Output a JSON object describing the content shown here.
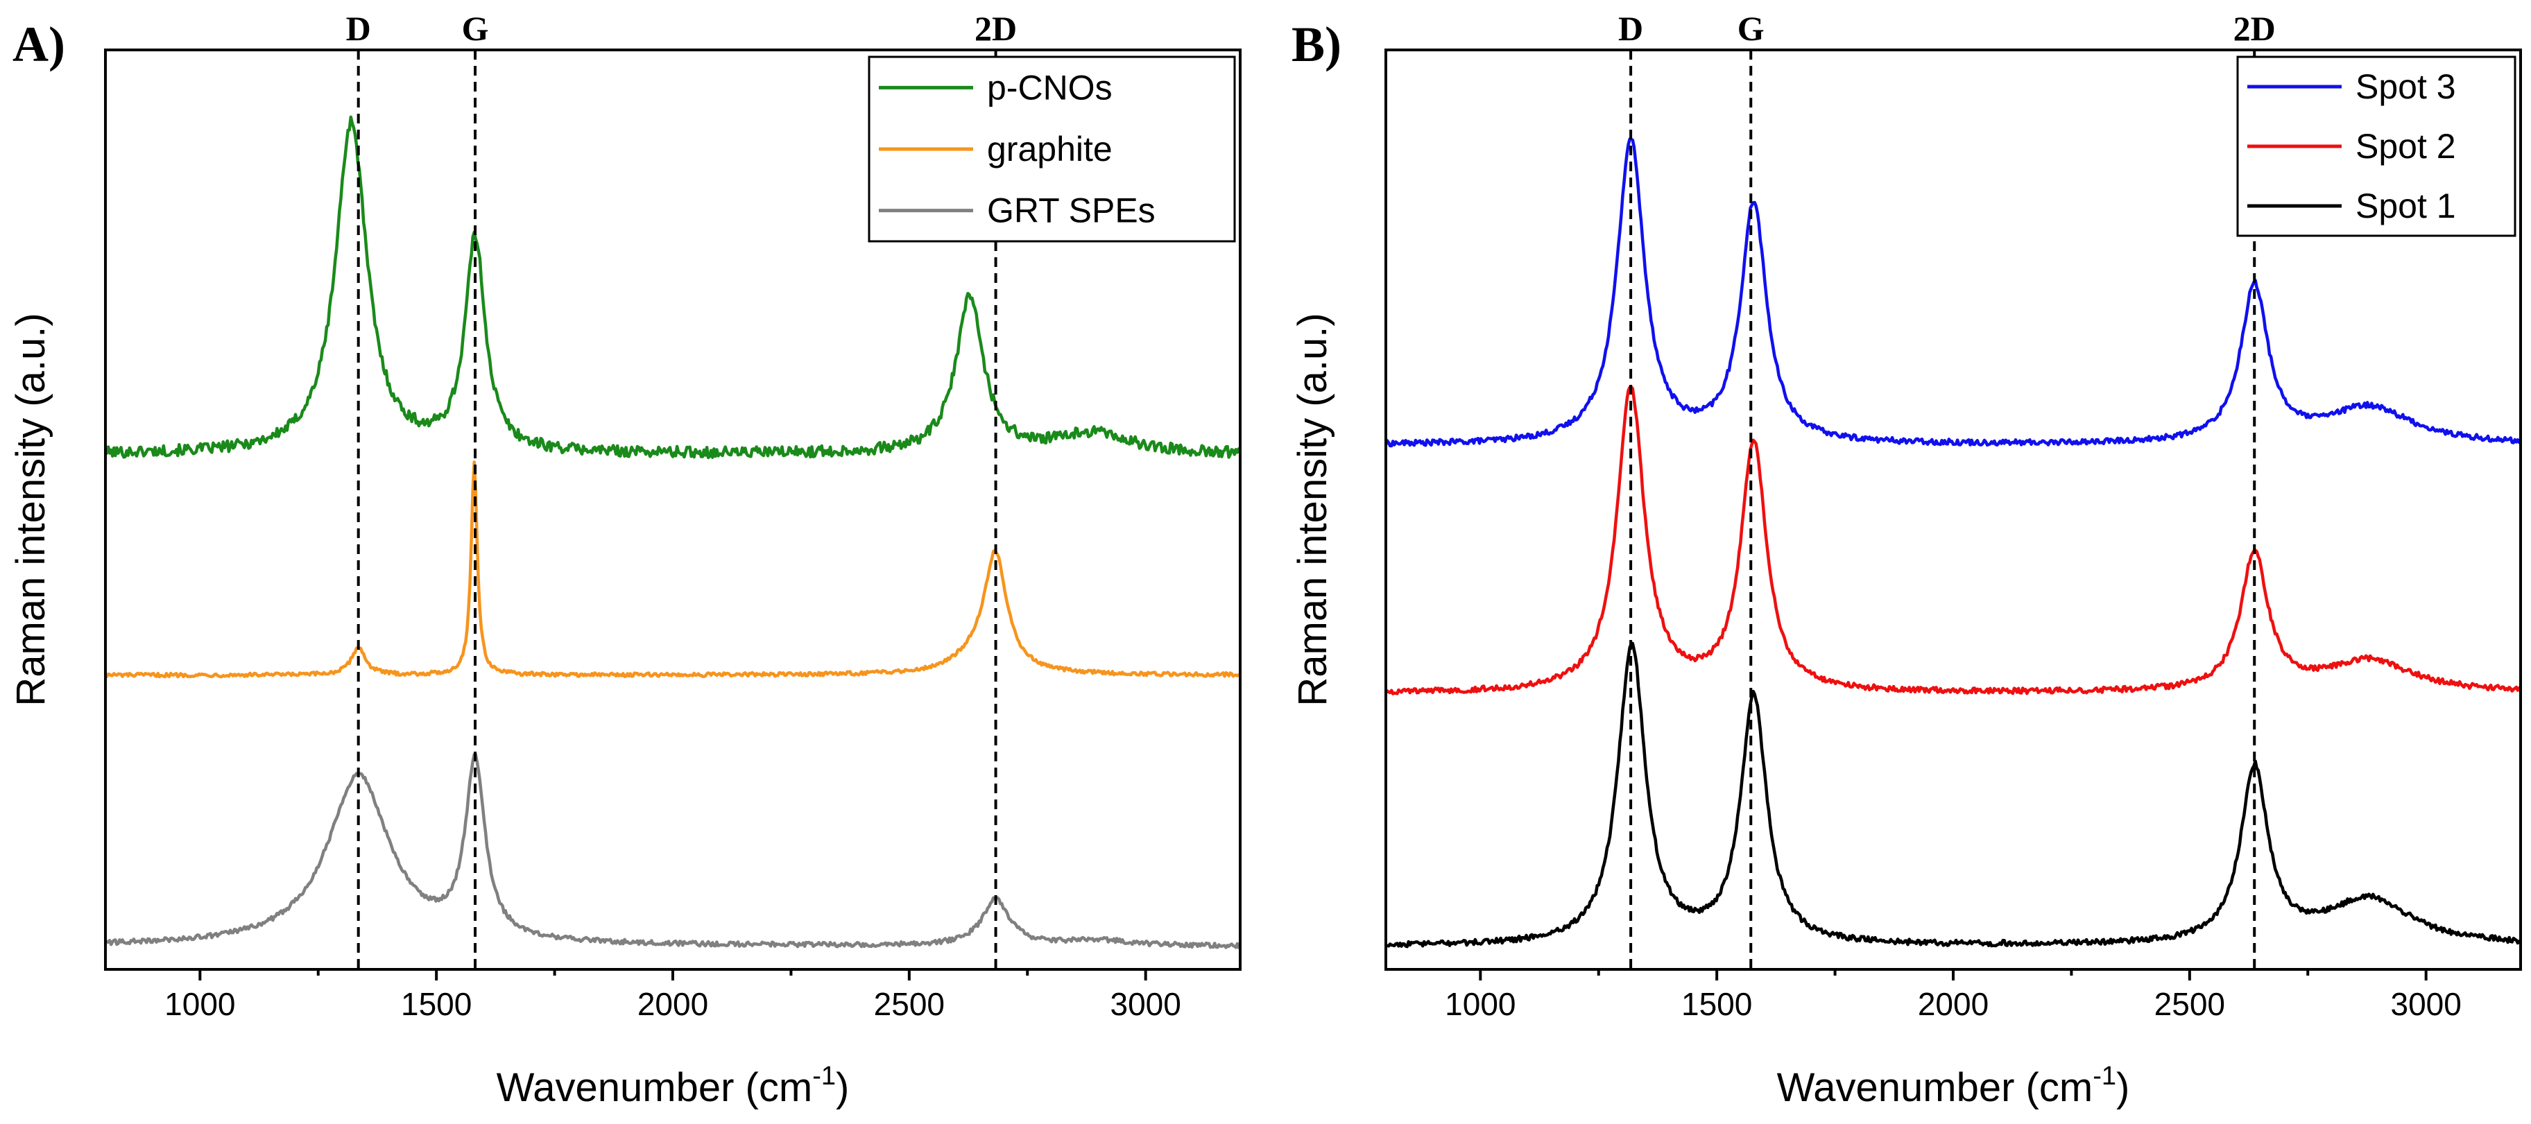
{
  "chart_data": [
    {
      "panel_label": "A)",
      "type": "line",
      "xlabel_main": "Wavenumber (cm",
      "xlabel_sup": "-1",
      "xlabel_tail": ")",
      "ylabel": "Raman intensity (a.u.)",
      "xlim": [
        800,
        3200
      ],
      "ylim": [
        0,
        100
      ],
      "xticks": [
        "1000",
        "1500",
        "2000",
        "2500",
        "3000"
      ],
      "xtick_values": [
        1000,
        1500,
        2000,
        2500,
        3000
      ],
      "yticks_shown": false,
      "legend_position": "top-right",
      "reference_lines": [
        {
          "label": "D",
          "x": 1335
        },
        {
          "label": "G",
          "x": 1582
        },
        {
          "label": "2D",
          "x": 2683
        }
      ],
      "series": [
        {
          "name": "p-CNOs",
          "color": "#1a8a1a",
          "baseline": 56,
          "slope": 0,
          "noise": 0.6,
          "peaks": [
            {
              "center": 1320,
              "height": 36,
              "width": 40
            },
            {
              "center": 1582,
              "height": 23,
              "width": 26
            },
            {
              "center": 2628,
              "height": 17,
              "width": 35
            },
            {
              "center": 2890,
              "height": 2.2,
              "width": 90
            }
          ]
        },
        {
          "name": "graphite",
          "color": "#f7941d",
          "baseline": 32,
          "slope": 0,
          "noise": 0.2,
          "peaks": [
            {
              "center": 1335,
              "height": 3,
              "width": 18
            },
            {
              "center": 1580,
              "height": 23,
              "width": 8
            },
            {
              "center": 2683,
              "height": 12,
              "width": 28
            },
            {
              "center": 2650,
              "height": 2,
              "width": 60
            }
          ]
        },
        {
          "name": "GRT SPEs",
          "color": "#808080",
          "baseline": 2.5,
          "slope": 0,
          "noise": 0.25,
          "peaks": [
            {
              "center": 1335,
              "height": 18.5,
              "width": 80
            },
            {
              "center": 1582,
              "height": 19,
              "width": 25
            },
            {
              "center": 2683,
              "height": 5,
              "width": 35
            },
            {
              "center": 2900,
              "height": 0.6,
              "width": 80
            }
          ]
        }
      ]
    },
    {
      "panel_label": "B)",
      "type": "line",
      "xlabel_main": "Wavenumber (cm",
      "xlabel_sup": "-1",
      "xlabel_tail": ")",
      "ylabel": "Raman intensity (a.u.)",
      "xlim": [
        800,
        3200
      ],
      "ylim": [
        0,
        100
      ],
      "xticks": [
        "1000",
        "1500",
        "2000",
        "2500",
        "3000"
      ],
      "xtick_values": [
        1000,
        1500,
        2000,
        2500,
        3000
      ],
      "yticks_shown": false,
      "legend_position": "top-right",
      "reference_lines": [
        {
          "label": "D",
          "x": 1318
        },
        {
          "label": "G",
          "x": 1572
        },
        {
          "label": "2D",
          "x": 2637
        }
      ],
      "series": [
        {
          "name": "Spot 3",
          "color": "#1010ee",
          "baseline": 57,
          "slope": 0,
          "noise": 0.3,
          "peaks": [
            {
              "center": 1318,
              "height": 33,
              "width": 35
            },
            {
              "center": 1578,
              "height": 26,
              "width": 33
            },
            {
              "center": 2637,
              "height": 17,
              "width": 35
            },
            {
              "center": 2880,
              "height": 4,
              "width": 110
            }
          ]
        },
        {
          "name": "Spot 2",
          "color": "#ee1010",
          "baseline": 30,
          "slope": 0,
          "noise": 0.3,
          "peaks": [
            {
              "center": 1318,
              "height": 33,
              "width": 35
            },
            {
              "center": 1578,
              "height": 27,
              "width": 33
            },
            {
              "center": 2637,
              "height": 15,
              "width": 35
            },
            {
              "center": 2880,
              "height": 3.5,
              "width": 110
            }
          ]
        },
        {
          "name": "Spot 1",
          "color": "#000000",
          "baseline": 2.5,
          "slope": 0,
          "noise": 0.3,
          "peaks": [
            {
              "center": 1320,
              "height": 32.5,
              "width": 35
            },
            {
              "center": 1578,
              "height": 27,
              "width": 33
            },
            {
              "center": 2637,
              "height": 19,
              "width": 35
            },
            {
              "center": 2880,
              "height": 5,
              "width": 110
            }
          ]
        }
      ]
    }
  ]
}
